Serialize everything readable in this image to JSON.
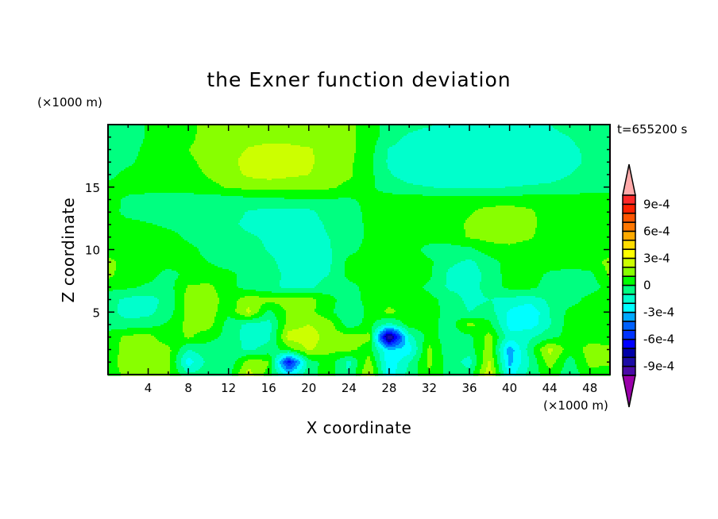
{
  "chart_data": {
    "type": "heatmap",
    "style": "filled-contour",
    "title": "the Exner function deviation",
    "xlabel": "X coordinate",
    "ylabel": "Z coordinate",
    "x_unit": "(×1000 m)",
    "z_unit": "(×1000 m)",
    "time_label": "t=655200 s",
    "xlim": [
      0,
      50
    ],
    "ylim": [
      0,
      20
    ],
    "x_ticks": [
      4,
      8,
      12,
      16,
      20,
      24,
      28,
      32,
      36,
      40,
      44,
      48
    ],
    "x_tick_labels": [
      "4",
      "8",
      "12",
      "16",
      "20",
      "24",
      "28",
      "32",
      "36",
      "40",
      "44",
      "48"
    ],
    "y_ticks": [
      5,
      10,
      15
    ],
    "y_tick_labels": [
      "5",
      "10",
      "15"
    ],
    "colorbar": {
      "levels_min": -0.001,
      "levels_max": 0.001,
      "level_step": 0.0001,
      "tick_values": [
        0.0009,
        0.0006,
        0.0003,
        0,
        -0.0003,
        -0.0006,
        -0.0009
      ],
      "tick_labels": [
        "9e-4",
        "6e-4",
        "3e-4",
        "0",
        "-3e-4",
        "-6e-4",
        "-9e-4"
      ],
      "colors_low_to_high": [
        "#4a0aa6",
        "#1c0ca6",
        "#0000a8",
        "#0000ff",
        "#0033ff",
        "#0060ff",
        "#00a8ff",
        "#00ffff",
        "#00ffcc",
        "#00ff80",
        "#00ff00",
        "#88ff00",
        "#ccff00",
        "#ffff00",
        "#ffdd00",
        "#ffaa00",
        "#ff7700",
        "#ff5500",
        "#ff2200",
        "#ff2a2a"
      ],
      "under_color": "#9a00aa",
      "over_color": "#ffaaaa",
      "extend": "both"
    },
    "x": [
      0,
      2,
      4,
      6,
      8,
      10,
      12,
      14,
      16,
      18,
      20,
      22,
      24,
      26,
      28,
      30,
      32,
      34,
      36,
      38,
      40,
      42,
      44,
      46,
      48,
      50
    ],
    "z": [
      20,
      19,
      18,
      17,
      16,
      15,
      14,
      13,
      12,
      11,
      10,
      9,
      8,
      7,
      6,
      5,
      4,
      3,
      2,
      1,
      0
    ],
    "values": [
      [
        -5e-05,
        -5e-05,
        1e-05,
        5e-05,
        6e-05,
        0.00015,
        0.00015,
        0.00015,
        0.00015,
        0.00015,
        0.00015,
        0.00015,
        0.00013,
        5e-05,
        -5e-05,
        -6e-05,
        -9e-05,
        -0.00015,
        -0.00015,
        -0.00015,
        -0.00015,
        -0.00015,
        -0.0001,
        -6e-05,
        -5e-05,
        -5e-05
      ],
      [
        -5e-05,
        -5e-05,
        1e-05,
        5e-05,
        7e-05,
        0.00015,
        0.00015,
        0.00015,
        0.00016,
        0.00016,
        0.00015,
        0.00015,
        0.00013,
        5e-05,
        -5e-05,
        -0.00012,
        -0.00015,
        -0.00015,
        -0.00015,
        -0.00015,
        -0.00015,
        -0.00015,
        -0.00013,
        -0.0001,
        -6e-05,
        -5e-05
      ],
      [
        -5e-05,
        -4e-05,
        3e-05,
        5e-05,
        0.0001,
        0.00015,
        0.00015,
        0.00021,
        0.00024,
        0.00023,
        0.00021,
        0.00016,
        0.00013,
        4e-05,
        -0.00011,
        -0.00015,
        -0.00015,
        -0.00015,
        -0.00015,
        -0.00015,
        -0.00015,
        -0.00015,
        -0.00015,
        -0.00012,
        -8e-05,
        -5e-05
      ],
      [
        -5e-05,
        -2e-05,
        4e-05,
        5e-05,
        8e-05,
        0.00013,
        0.00016,
        0.00025,
        0.00026,
        0.00025,
        0.00022,
        0.00015,
        0.00012,
        3e-05,
        -0.00012,
        -0.00015,
        -0.00015,
        -0.00015,
        -0.00015,
        -0.00015,
        -0.00015,
        -0.00015,
        -0.00015,
        -0.00013,
        -8e-05,
        -5e-05
      ],
      [
        -3e-05,
        3e-05,
        5e-05,
        5e-05,
        6e-05,
        0.00011,
        0.00015,
        0.00022,
        0.00024,
        0.00022,
        0.0002,
        0.00015,
        0.00012,
        3e-05,
        -9e-05,
        -0.00015,
        -0.00015,
        -0.00015,
        -0.00015,
        -0.00015,
        -0.00015,
        -0.00015,
        -0.00014,
        -0.0001,
        -6e-05,
        -5e-05
      ],
      [
        3e-05,
        4e-05,
        5e-05,
        5e-05,
        5e-05,
        7e-05,
        0.00011,
        0.00013,
        0.00014,
        0.00013,
        0.00013,
        0.00012,
        7e-05,
        2e-05,
        -5e-05,
        -8e-05,
        -0.0001,
        -0.00011,
        -0.00011,
        -0.00011,
        -0.0001,
        -9e-05,
        -8e-05,
        -6e-05,
        -5e-05,
        -4e-05
      ],
      [
        4e-05,
        -2e-05,
        -5e-05,
        -5e-05,
        -5e-05,
        -5e-05,
        -5e-05,
        -3e-05,
        -3e-05,
        -1e-05,
        -1e-05,
        -1e-05,
        -1e-05,
        2e-05,
        5e-05,
        5e-05,
        5e-05,
        5e-05,
        5e-05,
        5e-05,
        5e-05,
        5e-05,
        5e-05,
        5e-05,
        5e-05,
        5e-05
      ],
      [
        4e-05,
        -3e-05,
        -5e-05,
        -5e-05,
        -5e-05,
        -5e-05,
        -5e-05,
        -0.00011,
        -0.00013,
        -0.00014,
        -0.00013,
        -5e-05,
        -5e-05,
        3e-05,
        5e-05,
        5e-05,
        5e-05,
        5e-05,
        9e-05,
        0.00014,
        0.00015,
        0.00012,
        5e-05,
        5e-05,
        5e-05,
        5e-05
      ],
      [
        4e-05,
        3e-05,
        1e-05,
        -2e-05,
        -4e-05,
        -5e-05,
        -7e-05,
        -0.00013,
        -0.00015,
        -0.00015,
        -0.00015,
        -8e-05,
        -5e-05,
        2e-05,
        5e-05,
        5e-05,
        5e-05,
        5e-05,
        0.00012,
        0.00016,
        0.00016,
        0.00013,
        5e-05,
        5e-05,
        5e-05,
        5e-05
      ],
      [
        5e-05,
        5e-05,
        5e-05,
        4e-05,
        -2e-05,
        -5e-05,
        -5e-05,
        -8e-05,
        -0.00012,
        -0.00015,
        -0.00015,
        -0.0001,
        -5e-05,
        2e-05,
        5e-05,
        5e-05,
        5e-05,
        5e-05,
        0.00011,
        0.00013,
        0.00013,
        0.00011,
        5e-05,
        5e-05,
        5e-05,
        5e-05
      ],
      [
        5e-05,
        5e-05,
        5e-05,
        5e-05,
        3e-05,
        -3e-05,
        -5e-05,
        -5e-05,
        -0.00011,
        -0.00015,
        -0.00015,
        -0.00011,
        -3e-05,
        3e-05,
        5e-05,
        5e-05,
        -4e-05,
        -4e-05,
        -3e-05,
        6e-05,
        8e-05,
        6e-05,
        5e-05,
        5e-05,
        5e-05,
        5e-05
      ],
      [
        0.00013,
        6e-05,
        5e-05,
        5e-05,
        3e-05,
        0,
        -3e-05,
        -4e-05,
        -7e-05,
        -0.00015,
        -0.00015,
        -0.00012,
        3e-05,
        5e-05,
        5e-05,
        5e-05,
        2e-05,
        -8e-05,
        -0.00012,
        -5e-05,
        5e-05,
        5e-05,
        5e-05,
        5e-05,
        6e-05,
        0.00013
      ],
      [
        0.00013,
        4e-05,
        4e-05,
        -4e-05,
        3e-05,
        3e-05,
        2e-05,
        -3e-05,
        -5e-05,
        -0.00013,
        -0.00014,
        -0.0001,
        3e-05,
        4e-05,
        5e-05,
        5e-05,
        2e-05,
        -0.00012,
        -0.00015,
        -7e-05,
        5e-05,
        5e-05,
        -2e-05,
        -4e-05,
        -3e-05,
        0.00012
      ],
      [
        3e-05,
        2e-05,
        -2e-05,
        -4e-05,
        0.00011,
        0.00013,
        3e-05,
        -4e-05,
        -8e-05,
        -0.00012,
        -0.00012,
        -6e-05,
        -3e-05,
        3e-05,
        5e-05,
        4e-05,
        -2e-05,
        -0.00012,
        -0.00014,
        -6e-05,
        3e-05,
        3e-05,
        -5e-05,
        -5e-05,
        -5e-05,
        4e-05
      ],
      [
        -6e-05,
        -0.00013,
        -0.00014,
        -7e-05,
        0.00015,
        0.00016,
        5e-05,
        0.00016,
        0.00013,
        0.00014,
        0.00014,
        4e-05,
        -6e-05,
        4e-05,
        6e-05,
        4e-05,
        3e-05,
        -4e-05,
        -0.00013,
        -0.0001,
        -0.00013,
        -0.00015,
        -8e-05,
        -5e-05,
        4e-05,
        5e-05
      ],
      [
        -6e-05,
        -0.00015,
        -0.00013,
        -5e-05,
        0.00013,
        0.00015,
        3e-05,
        0.00023,
        -3e-05,
        0.00012,
        0.00013,
        3e-05,
        -0.0001,
        3e-05,
        0.00013,
        5e-05,
        4e-05,
        -3e-05,
        -0.0001,
        -6e-05,
        -0.00022,
        -0.0003,
        -0.0001,
        3e-05,
        5e-05,
        5e-05
      ],
      [
        -5e-05,
        -6e-05,
        -4e-05,
        2e-05,
        0.00013,
        0.00015,
        -5e-05,
        -0.00013,
        -0.00015,
        0.00015,
        0.0002,
        0.00015,
        -6e-05,
        4e-05,
        -0.00015,
        5e-05,
        4e-05,
        -5e-05,
        0.00013,
        3e-05,
        -0.00024,
        -0.00026,
        -0.00011,
        5e-05,
        6e-05,
        5e-05
      ],
      [
        5e-05,
        0.00013,
        0.00014,
        3e-05,
        0.00012,
        3e-05,
        -3e-05,
        -0.00015,
        -0.00013,
        0.00025,
        0.00026,
        0.00015,
        0.00014,
        0.00013,
        -0.00095,
        -0.00015,
        5e-05,
        -6e-05,
        -3e-05,
        0.00014,
        -0.00016,
        -0.00012,
        -3e-05,
        4e-05,
        6e-05,
        4e-05
      ],
      [
        5e-05,
        0.00014,
        0.00016,
        0.00013,
        -0.0001,
        -4e-05,
        -5e-05,
        -0.00012,
        -6e-05,
        5e-05,
        0.00022,
        0.00013,
        0.00013,
        5e-05,
        -0.0003,
        -0.00026,
        0.00013,
        -8e-05,
        -5e-05,
        0.00016,
        -0.00037,
        -5e-05,
        0.00024,
        4e-05,
        0.00014,
        0.00013
      ],
      [
        6e-05,
        0.00015,
        0.0002,
        0.00014,
        -0.00026,
        -6e-05,
        -8e-05,
        0.00015,
        0.00012,
        -0.00065,
        -5e-05,
        5e-05,
        -0.00013,
        0.00015,
        -0.00028,
        -0.0001,
        0.00013,
        -5e-05,
        -0.00014,
        0.00022,
        -0.00034,
        -0.0001,
        0.00016,
        -5e-05,
        0.00013,
        0.00012
      ],
      [
        5e-05,
        0.00013,
        0.00016,
        0.00012,
        -8e-05,
        -5e-05,
        -4e-05,
        0.00025,
        5e-05,
        -0.00026,
        -3e-05,
        4e-05,
        -0.0001,
        0.00023,
        -0.00026,
        -6e-05,
        9e-05,
        -4e-05,
        -6e-05,
        0.00028,
        -0.00025,
        -6e-05,
        5e-05,
        -6e-05,
        6e-05,
        5e-05
      ]
    ]
  }
}
